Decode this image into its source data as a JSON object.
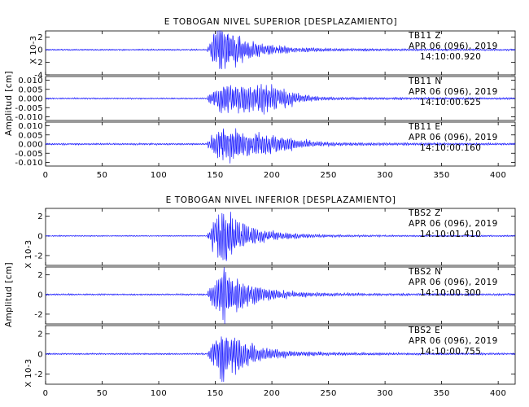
{
  "chart_data": [
    {
      "type": "line",
      "title": "E TOBOGAN NIVEL SUPERIOR [DESPLAZAMIENTO]",
      "ylabel": "Amplitud [cm]",
      "xlim": [
        0,
        415
      ],
      "x_ticks": [
        "0",
        "50",
        "100",
        "150",
        "200",
        "250",
        "300",
        "350",
        "400"
      ],
      "line_color": "#1a1aff",
      "panels": [
        {
          "station": "TB11",
          "component": "Z",
          "date": "APR 06 (096), 2019",
          "time": "14:10:00.920",
          "scale_label": "X 10-3",
          "ylim": [
            -4,
            3
          ],
          "y_ticks": [
            "2",
            "0",
            "-2",
            "-4"
          ],
          "envelope": {
            "onset": 143,
            "peak_time": 155,
            "peak_amplitude": 4.0,
            "noise_amplitude": 0.12,
            "coda_amplitude": 0.2,
            "duration": 415
          }
        },
        {
          "station": "TB11",
          "component": "N",
          "date": "APR 06 (096), 2019",
          "time": "14:10:00.625",
          "scale_label": "",
          "ylim": [
            -0.012,
            0.012
          ],
          "y_ticks": [
            "0.010",
            "0.005",
            "0.000",
            "-0.005",
            "-0.010"
          ],
          "envelope": {
            "onset": 143,
            "peak_time": 155,
            "peak_amplitude": 0.007,
            "secondary_peak_time": 195,
            "secondary_amplitude": 0.005,
            "noise_amplitude": 0.0004,
            "coda_amplitude": 0.0008,
            "duration": 415
          }
        },
        {
          "station": "TB11",
          "component": "E",
          "date": "APR 06 (096), 2019",
          "time": "14:10:00.160",
          "scale_label": "",
          "ylim": [
            -0.012,
            0.012
          ],
          "y_ticks": [
            "0.010",
            "0.005",
            "0.000",
            "-0.005",
            "-0.010"
          ],
          "envelope": {
            "onset": 143,
            "peak_time": 157,
            "peak_amplitude": 0.009,
            "secondary_peak_time": 195,
            "secondary_amplitude": 0.003,
            "noise_amplitude": 0.0005,
            "coda_amplitude": 0.0009,
            "duration": 415
          }
        }
      ]
    },
    {
      "type": "line",
      "title": "E TOBOGAN NIVEL INFERIOR [DESPLAZAMIENTO]",
      "ylabel": "Amplitud [cm]",
      "xlim": [
        0,
        415
      ],
      "x_ticks": [
        "0",
        "50",
        "100",
        "150",
        "200",
        "250",
        "300",
        "350",
        "400"
      ],
      "line_color": "#1a1aff",
      "panels": [
        {
          "station": "TBS2",
          "component": "Z",
          "date": "APR 06 (096), 2019",
          "time": "14:10:01.410",
          "scale_label": "X 10-3",
          "ylim": [
            -3,
            2.8
          ],
          "y_ticks": [
            "2",
            "0",
            "-2"
          ],
          "envelope": {
            "onset": 143,
            "peak_time": 155,
            "peak_amplitude": 3.0,
            "noise_amplitude": 0.06,
            "coda_amplitude": 0.1,
            "duration": 415
          }
        },
        {
          "station": "TBS2",
          "component": "N",
          "date": "APR 06 (096), 2019",
          "time": "14:10:00.300",
          "scale_label": "",
          "ylim": [
            -3,
            2.8
          ],
          "y_ticks": [
            "2",
            "0",
            "-2"
          ],
          "envelope": {
            "onset": 143,
            "peak_time": 157,
            "peak_amplitude": 2.6,
            "noise_amplitude": 0.08,
            "coda_amplitude": 0.15,
            "duration": 415
          }
        },
        {
          "station": "TBS2",
          "component": "E",
          "date": "APR 06 (096), 2019",
          "time": "14:10:00.755",
          "scale_label": "X 10-3",
          "ylim": [
            -3,
            2.8
          ],
          "y_ticks": [
            "2",
            "0",
            "-2"
          ],
          "envelope": {
            "onset": 143,
            "peak_time": 155,
            "peak_amplitude": 2.6,
            "noise_amplitude": 0.08,
            "coda_amplitude": 0.12,
            "duration": 415
          }
        }
      ]
    }
  ]
}
